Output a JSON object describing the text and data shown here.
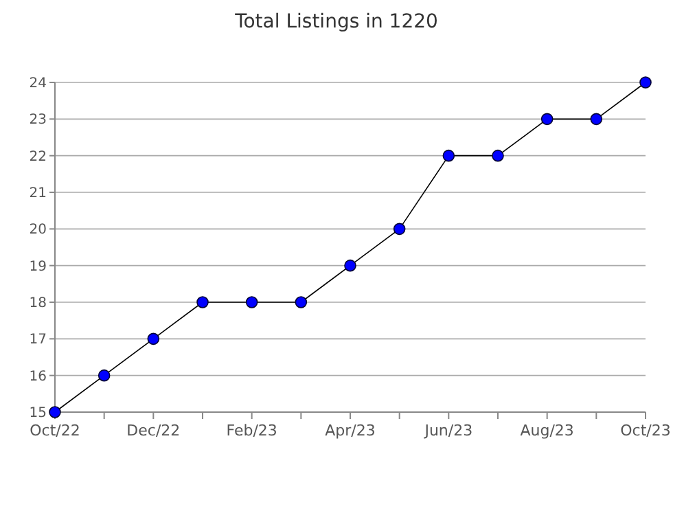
{
  "chart_data": {
    "type": "line",
    "title": "Total Listings in 1220",
    "categories": [
      "Oct/22",
      null,
      "Dec/22",
      null,
      "Feb/23",
      null,
      "Apr/23",
      null,
      "Jun/23",
      null,
      "Aug/23",
      null,
      "Oct/23"
    ],
    "series": [
      {
        "color": "#0000ff",
        "values": [
          15,
          16,
          17,
          18,
          18,
          18,
          19,
          20,
          22,
          22,
          23,
          23,
          24
        ]
      }
    ],
    "ylim": [
      15,
      24
    ],
    "yticks": [
      15,
      16,
      17,
      18,
      19,
      20,
      21,
      22,
      23,
      24
    ],
    "grid": "y",
    "marker": "circle",
    "line_style": "solid"
  }
}
